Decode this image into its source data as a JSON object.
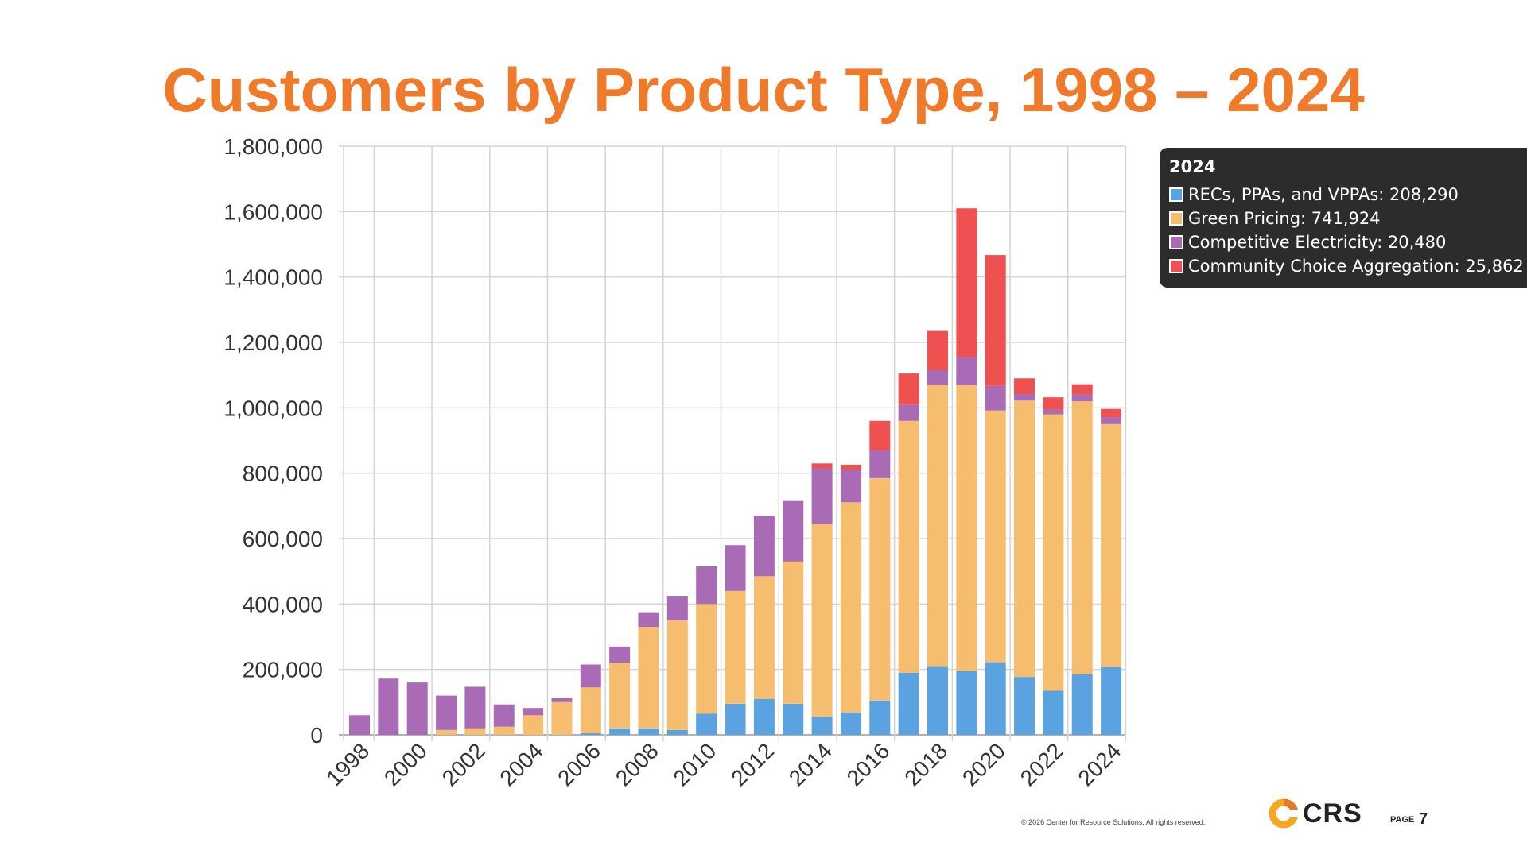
{
  "slide": {
    "title": "Customers by Product Type, 1998 – 2024",
    "copyright": "© 2026 Center for Resource Solutions. All rights reserved.",
    "logo_text": "CRS",
    "page_label": "PAGE",
    "page_number": "7"
  },
  "colors": {
    "title": "#ee7a2a",
    "recs": "#5ba3e0",
    "green_pricing": "#f6bd6e",
    "competitive": "#a96bb5",
    "cca": "#ef5050"
  },
  "chart_data": {
    "type": "bar",
    "stacked": true,
    "title": "Customers by Product Type, 1998 – 2024",
    "xlabel": "",
    "ylabel": "",
    "ylim": [
      0,
      1800000
    ],
    "ytick_labels": [
      "0",
      "200,000",
      "400,000",
      "600,000",
      "800,000",
      "1,000,000",
      "1,200,000",
      "1,400,000",
      "1,600,000",
      "1,800,000"
    ],
    "categories": [
      "1998",
      "1999",
      "2000",
      "2001",
      "2002",
      "2003",
      "2004",
      "2005",
      "2006",
      "2007",
      "2008",
      "2009",
      "2010",
      "2011",
      "2012",
      "2013",
      "2014",
      "2015",
      "2016",
      "2017",
      "2018",
      "2019",
      "2020",
      "2021",
      "2022",
      "2023",
      "2024"
    ],
    "xtick_labels": [
      "1998",
      "2000",
      "2002",
      "2004",
      "2006",
      "2008",
      "2010",
      "2012",
      "2014",
      "2016",
      "2018",
      "2020",
      "2022",
      "2024"
    ],
    "series": [
      {
        "name": "RECs, PPAs, and VPPAs",
        "color": "#5ba3e0",
        "values": [
          0,
          0,
          0,
          0,
          0,
          0,
          0,
          0,
          5000,
          20000,
          20000,
          15000,
          65000,
          95000,
          110000,
          95000,
          55000,
          68000,
          105000,
          190000,
          210000,
          195000,
          222000,
          177000,
          135000,
          185000,
          208290
        ]
      },
      {
        "name": "Green Pricing",
        "color": "#f6bd6e",
        "values": [
          0,
          0,
          0,
          15000,
          20000,
          25000,
          60000,
          100000,
          140000,
          200000,
          310000,
          335000,
          335000,
          345000,
          375000,
          435000,
          590000,
          643000,
          680000,
          770000,
          860000,
          875000,
          770000,
          845000,
          845000,
          835000,
          741924
        ]
      },
      {
        "name": "Competitive Electricity",
        "color": "#a96bb5",
        "values": [
          60000,
          172000,
          160000,
          105000,
          127000,
          68000,
          22000,
          12000,
          70000,
          50000,
          45000,
          75000,
          115000,
          140000,
          185000,
          185000,
          170000,
          100000,
          85000,
          50000,
          45000,
          85000,
          75000,
          20000,
          15000,
          20000,
          20480
        ]
      },
      {
        "name": "Community Choice Aggregation",
        "color": "#ef5050",
        "values": [
          0,
          0,
          0,
          0,
          0,
          0,
          0,
          0,
          0,
          0,
          0,
          0,
          0,
          0,
          0,
          0,
          15000,
          15000,
          90000,
          95000,
          120000,
          455000,
          400000,
          48000,
          37000,
          32000,
          25862
        ]
      }
    ],
    "tooltip": {
      "title": "2024",
      "rows": [
        {
          "label": "RECs, PPAs, and VPPAs: 208,290",
          "color": "#5ba3e0"
        },
        {
          "label": "Green Pricing: 741,924",
          "color": "#f6bd6e"
        },
        {
          "label": "Competitive Electricity: 20,480",
          "color": "#a96bb5"
        },
        {
          "label": "Community Choice Aggregation: 25,862",
          "color": "#ef5050"
        }
      ]
    }
  }
}
